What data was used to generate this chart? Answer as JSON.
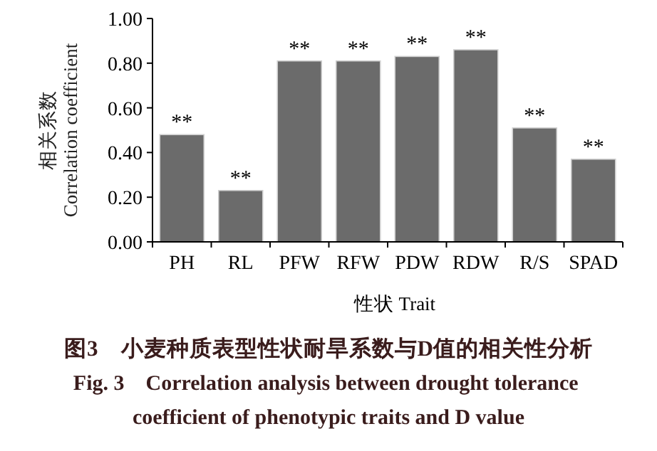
{
  "chart_data": {
    "type": "bar",
    "title": "图3　小麦种质表型性状耐旱系数与D值的相关性分析",
    "subtitle": "Fig. 3　Correlation analysis between drought tolerance coefficient of phenotypic traits and D value",
    "xlabel": "性状 Trait",
    "ylabel": "相关系数 Correlation coefficient",
    "categories": [
      "PH",
      "RL",
      "PFW",
      "RFW",
      "PDW",
      "RDW",
      "R/S",
      "SPAD"
    ],
    "values": [
      0.48,
      0.23,
      0.81,
      0.81,
      0.83,
      0.86,
      0.51,
      0.37
    ],
    "color": "#6b6b6b",
    "ylim": [
      0,
      1
    ],
    "yticks": [
      {
        "value": 0,
        "label": "0.00"
      },
      {
        "value": 0.2,
        "label": "0.20"
      },
      {
        "value": 0.4,
        "label": "0.40"
      },
      {
        "value": 0.6,
        "label": "0.60"
      },
      {
        "value": 0.8,
        "label": "0.80"
      },
      {
        "value": 1,
        "label": "1.00"
      }
    ],
    "annotations": [
      {
        "text": "**",
        "x": "PH",
        "y": 0.48
      },
      {
        "text": "**",
        "x": "RL",
        "y": 0.23
      },
      {
        "text": "**",
        "x": "PFW",
        "y": 0.81
      },
      {
        "text": "**",
        "x": "RFW",
        "y": 0.81
      },
      {
        "text": "**",
        "x": "PDW",
        "y": 0.83
      },
      {
        "text": "**",
        "x": "RDW",
        "y": 0.86
      },
      {
        "text": "**",
        "x": "R/S",
        "y": 0.51
      },
      {
        "text": "**",
        "x": "SPAD",
        "y": 0.37
      }
    ]
  }
}
